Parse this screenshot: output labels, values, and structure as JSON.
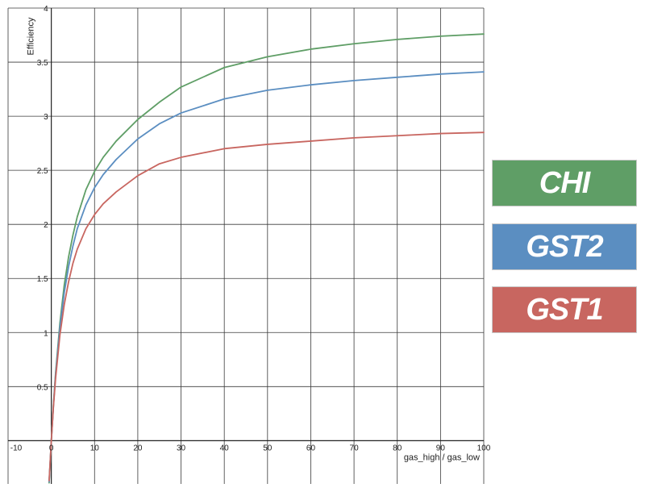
{
  "chart_data": {
    "type": "line",
    "xlabel": "gas_high / gas_low",
    "ylabel": "Efficiency",
    "xlim": [
      -10,
      100
    ],
    "ylim": [
      -0.4,
      4
    ],
    "x_ticks": [
      -10,
      0,
      10,
      20,
      30,
      40,
      50,
      60,
      70,
      80,
      90,
      100
    ],
    "y_ticks": [
      0.5,
      1,
      1.5,
      2,
      2.5,
      3,
      3.5,
      4
    ],
    "x_tick_labels": [
      "-10",
      "0",
      "10",
      "20",
      "30",
      "40",
      "50",
      "60",
      "70",
      "80",
      "90",
      "100"
    ],
    "y_tick_labels": [
      "0.5",
      "1",
      "1.5",
      "2",
      "2.5",
      "3",
      "3.5",
      "4"
    ],
    "grid": true,
    "legend_position": "right",
    "x": [
      -0.5,
      0,
      0.5,
      1,
      2,
      3,
      4,
      5,
      6,
      8,
      10,
      12,
      15,
      20,
      25,
      30,
      40,
      50,
      60,
      70,
      80,
      90,
      100
    ],
    "series": [
      {
        "name": "CHI",
        "color": "#5f9e66",
        "values": [
          -0.39,
          0,
          0.34,
          0.63,
          1.09,
          1.44,
          1.7,
          1.9,
          2.07,
          2.32,
          2.49,
          2.62,
          2.77,
          2.97,
          3.13,
          3.27,
          3.45,
          3.55,
          3.62,
          3.67,
          3.71,
          3.74,
          3.76
        ]
      },
      {
        "name": "GST2",
        "color": "#5b8ec1",
        "values": [
          -0.38,
          0,
          0.33,
          0.61,
          1.05,
          1.37,
          1.61,
          1.8,
          1.96,
          2.18,
          2.34,
          2.46,
          2.6,
          2.79,
          2.93,
          3.03,
          3.16,
          3.24,
          3.29,
          3.33,
          3.36,
          3.39,
          3.41
        ]
      },
      {
        "name": "GST1",
        "color": "#c86660",
        "values": [
          -0.37,
          0,
          0.32,
          0.58,
          0.98,
          1.26,
          1.47,
          1.64,
          1.77,
          1.96,
          2.09,
          2.19,
          2.3,
          2.45,
          2.56,
          2.62,
          2.7,
          2.74,
          2.77,
          2.8,
          2.82,
          2.84,
          2.85
        ]
      }
    ]
  }
}
